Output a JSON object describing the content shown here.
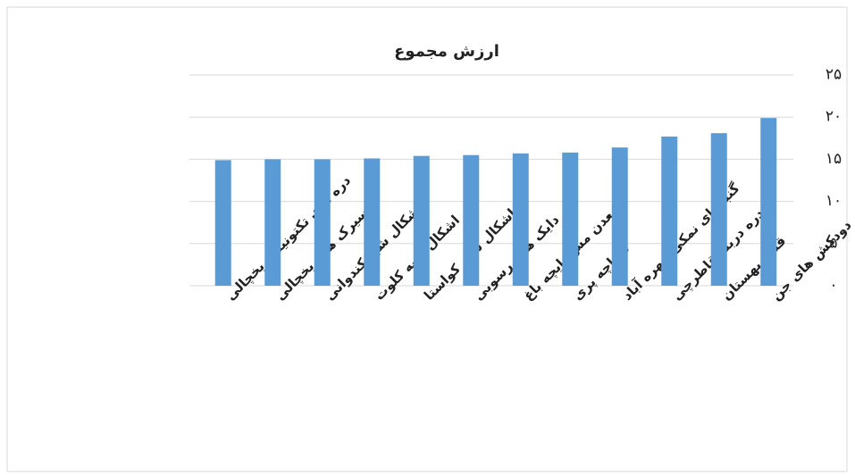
{
  "chart_data": {
    "type": "bar",
    "title": "ارزش مجموع",
    "categories": [
      "دره های تکتونیکی یخچالی",
      "سیرک های یخچالی",
      "اشکال شبه کندوانی",
      "اشکال شبه کلوت",
      "اشکال شبه کواستا",
      "دایک های رسوبی",
      "معدن مس بایچه باغ",
      "دریاچه پری",
      "گنبدهای نمکی چهره آباد",
      "دره دربند قاطرچی",
      "قلعه بهستان",
      "دودکش های جن"
    ],
    "values": [
      14.9,
      15.0,
      15.0,
      15.1,
      15.4,
      15.5,
      15.7,
      15.8,
      16.4,
      17.7,
      18.1,
      19.9
    ],
    "color": "#5b9bd5",
    "ylim": [
      0,
      25
    ],
    "yticks": [
      {
        "value": 0,
        "label": "۰"
      },
      {
        "value": 5,
        "label": "۵"
      },
      {
        "value": 10,
        "label": "۱۰"
      },
      {
        "value": 15,
        "label": "۱۵"
      },
      {
        "value": 20,
        "label": "۲۰"
      },
      {
        "value": 25,
        "label": "۲۵"
      }
    ],
    "grid": true
  }
}
